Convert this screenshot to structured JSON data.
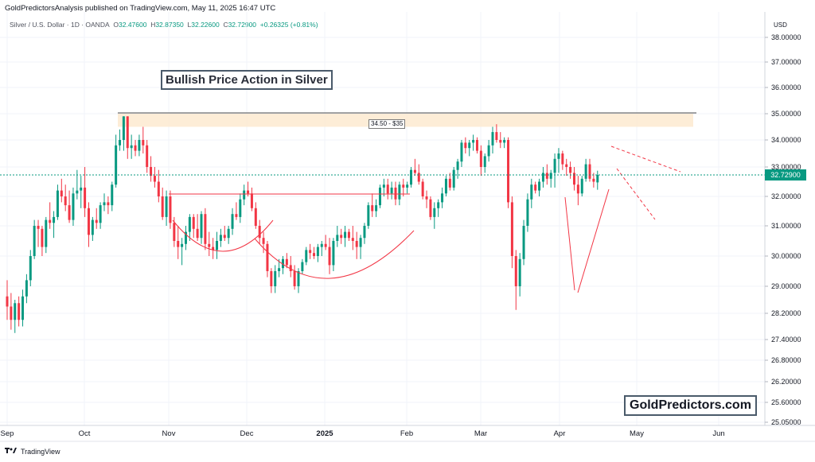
{
  "header": {
    "publish_line": "GoldPredictorsAnalysis published on TradingView.com, May 11, 2025 16:47 UTC",
    "symbol": "Silver / U.S. Dollar · 1D · OANDA",
    "ohlc": {
      "open_label": "O",
      "open": "32.47600",
      "high_label": "H",
      "high": "32.87350",
      "low_label": "L",
      "low": "32.22600",
      "close_label": "C",
      "close": "32.72900",
      "change": "+0.26325 (+0.81%)"
    }
  },
  "annotations": {
    "title": "Bullish Price Action in Silver",
    "zone_label": "34.50 - $35",
    "brand": "GoldPredictors.com"
  },
  "footer": {
    "brand": "TradingView",
    "logo": "tradingview-logo-icon"
  },
  "colors": {
    "up": "#089981",
    "down": "#f23645",
    "zone": "#fdebd3",
    "pattern_line": "#f23645",
    "last_price_tag": "#089981"
  },
  "chart_data": {
    "type": "candlestick",
    "currency_label": "USD",
    "last_price": "32.72900",
    "ylim": [
      25.0,
      38.4
    ],
    "y_ticks": [
      "38.00000",
      "37.00000",
      "36.00000",
      "35.00000",
      "34.00000",
      "33.00000",
      "32.00000",
      "31.00000",
      "30.00000",
      "29.00000",
      "28.20000",
      "27.40000",
      "26.80000",
      "26.20000",
      "25.60000",
      "25.05000"
    ],
    "x_ticks": [
      "Sep",
      "Oct",
      "Nov",
      "Dec",
      "2025",
      "Feb",
      "Mar",
      "Apr",
      "May",
      "Jun"
    ],
    "x_ticks_bold": [
      "2025"
    ],
    "resistance_zone": {
      "low": 34.5,
      "high": 35.0,
      "label": "34.50 - $35"
    },
    "candles": [
      {
        "o": 28.7,
        "h": 29.2,
        "l": 28.0,
        "c": 28.4
      },
      {
        "o": 28.4,
        "h": 28.8,
        "l": 27.7,
        "c": 28.0
      },
      {
        "o": 28.0,
        "h": 28.6,
        "l": 27.6,
        "c": 28.5
      },
      {
        "o": 28.5,
        "h": 28.7,
        "l": 27.8,
        "c": 28.0
      },
      {
        "o": 28.0,
        "h": 28.9,
        "l": 27.8,
        "c": 28.7
      },
      {
        "o": 28.7,
        "h": 29.4,
        "l": 28.5,
        "c": 29.2
      },
      {
        "o": 29.2,
        "h": 30.2,
        "l": 29.0,
        "c": 30.0
      },
      {
        "o": 30.0,
        "h": 31.2,
        "l": 29.9,
        "c": 31.0
      },
      {
        "o": 31.0,
        "h": 31.2,
        "l": 30.3,
        "c": 30.9
      },
      {
        "o": 30.9,
        "h": 31.0,
        "l": 30.0,
        "c": 30.3
      },
      {
        "o": 30.3,
        "h": 31.3,
        "l": 30.1,
        "c": 31.2
      },
      {
        "o": 31.2,
        "h": 31.8,
        "l": 30.9,
        "c": 31.1
      },
      {
        "o": 31.1,
        "h": 31.5,
        "l": 30.6,
        "c": 31.3
      },
      {
        "o": 31.3,
        "h": 32.4,
        "l": 31.2,
        "c": 32.2
      },
      {
        "o": 32.2,
        "h": 32.6,
        "l": 31.8,
        "c": 32.0
      },
      {
        "o": 32.0,
        "h": 32.4,
        "l": 31.5,
        "c": 31.7
      },
      {
        "o": 31.7,
        "h": 32.2,
        "l": 31.1,
        "c": 31.2
      },
      {
        "o": 31.2,
        "h": 32.3,
        "l": 31.0,
        "c": 32.1
      },
      {
        "o": 32.1,
        "h": 32.9,
        "l": 31.9,
        "c": 32.2
      },
      {
        "o": 32.2,
        "h": 32.7,
        "l": 31.6,
        "c": 32.3
      },
      {
        "o": 32.3,
        "h": 33.0,
        "l": 31.3,
        "c": 31.6
      },
      {
        "o": 31.6,
        "h": 31.8,
        "l": 30.3,
        "c": 30.7
      },
      {
        "o": 30.7,
        "h": 31.3,
        "l": 30.5,
        "c": 31.2
      },
      {
        "o": 31.2,
        "h": 31.6,
        "l": 30.9,
        "c": 31.1
      },
      {
        "o": 31.1,
        "h": 31.8,
        "l": 30.9,
        "c": 31.7
      },
      {
        "o": 31.7,
        "h": 32.1,
        "l": 31.5,
        "c": 31.8
      },
      {
        "o": 31.8,
        "h": 32.0,
        "l": 31.4,
        "c": 31.7
      },
      {
        "o": 31.7,
        "h": 32.5,
        "l": 31.5,
        "c": 32.4
      },
      {
        "o": 32.4,
        "h": 34.2,
        "l": 32.3,
        "c": 33.8
      },
      {
        "o": 33.8,
        "h": 34.4,
        "l": 33.6,
        "c": 34.0
      },
      {
        "o": 34.0,
        "h": 34.9,
        "l": 33.6,
        "c": 34.9
      },
      {
        "o": 34.9,
        "h": 34.9,
        "l": 33.3,
        "c": 33.7
      },
      {
        "o": 33.7,
        "h": 34.2,
        "l": 33.3,
        "c": 33.8
      },
      {
        "o": 33.8,
        "h": 34.0,
        "l": 33.4,
        "c": 33.6
      },
      {
        "o": 33.6,
        "h": 34.2,
        "l": 33.4,
        "c": 34.0
      },
      {
        "o": 34.0,
        "h": 34.5,
        "l": 33.5,
        "c": 33.8
      },
      {
        "o": 33.8,
        "h": 34.0,
        "l": 32.8,
        "c": 33.0
      },
      {
        "o": 33.0,
        "h": 33.4,
        "l": 32.5,
        "c": 32.7
      },
      {
        "o": 32.7,
        "h": 33.0,
        "l": 32.3,
        "c": 32.5
      },
      {
        "o": 32.5,
        "h": 32.9,
        "l": 31.8,
        "c": 32.0
      },
      {
        "o": 32.0,
        "h": 32.3,
        "l": 31.2,
        "c": 31.3
      },
      {
        "o": 31.3,
        "h": 32.2,
        "l": 31.0,
        "c": 32.0
      },
      {
        "o": 32.0,
        "h": 32.2,
        "l": 30.9,
        "c": 31.1
      },
      {
        "o": 31.1,
        "h": 31.3,
        "l": 30.3,
        "c": 30.5
      },
      {
        "o": 30.5,
        "h": 31.0,
        "l": 29.9,
        "c": 30.3
      },
      {
        "o": 30.3,
        "h": 30.6,
        "l": 29.7,
        "c": 30.4
      },
      {
        "o": 30.4,
        "h": 31.0,
        "l": 30.2,
        "c": 30.8
      },
      {
        "o": 30.8,
        "h": 31.4,
        "l": 30.5,
        "c": 31.3
      },
      {
        "o": 31.3,
        "h": 31.4,
        "l": 30.6,
        "c": 30.9
      },
      {
        "o": 30.9,
        "h": 31.4,
        "l": 30.5,
        "c": 30.6
      },
      {
        "o": 30.6,
        "h": 31.5,
        "l": 30.4,
        "c": 31.4
      },
      {
        "o": 31.4,
        "h": 31.6,
        "l": 30.2,
        "c": 30.4
      },
      {
        "o": 30.4,
        "h": 30.8,
        "l": 30.0,
        "c": 30.3
      },
      {
        "o": 30.3,
        "h": 30.6,
        "l": 29.9,
        "c": 30.2
      },
      {
        "o": 30.2,
        "h": 30.8,
        "l": 29.9,
        "c": 30.5
      },
      {
        "o": 30.5,
        "h": 30.9,
        "l": 30.3,
        "c": 30.7
      },
      {
        "o": 30.7,
        "h": 31.0,
        "l": 30.5,
        "c": 30.6
      },
      {
        "o": 30.6,
        "h": 31.0,
        "l": 30.4,
        "c": 30.9
      },
      {
        "o": 30.9,
        "h": 31.6,
        "l": 30.7,
        "c": 31.4
      },
      {
        "o": 31.4,
        "h": 31.8,
        "l": 31.2,
        "c": 31.3
      },
      {
        "o": 31.3,
        "h": 32.1,
        "l": 31.1,
        "c": 31.9
      },
      {
        "o": 31.9,
        "h": 32.4,
        "l": 31.7,
        "c": 32.2
      },
      {
        "o": 32.2,
        "h": 32.5,
        "l": 32.0,
        "c": 32.1
      },
      {
        "o": 32.1,
        "h": 32.3,
        "l": 31.5,
        "c": 31.6
      },
      {
        "o": 31.6,
        "h": 31.8,
        "l": 30.9,
        "c": 31.0
      },
      {
        "o": 31.0,
        "h": 31.2,
        "l": 30.4,
        "c": 30.6
      },
      {
        "o": 30.6,
        "h": 30.8,
        "l": 30.1,
        "c": 30.4
      },
      {
        "o": 30.4,
        "h": 30.5,
        "l": 29.3,
        "c": 29.5
      },
      {
        "o": 29.5,
        "h": 29.6,
        "l": 28.8,
        "c": 29.0
      },
      {
        "o": 29.0,
        "h": 29.7,
        "l": 28.8,
        "c": 29.5
      },
      {
        "o": 29.5,
        "h": 29.9,
        "l": 29.3,
        "c": 29.6
      },
      {
        "o": 29.6,
        "h": 30.0,
        "l": 29.4,
        "c": 29.9
      },
      {
        "o": 29.9,
        "h": 30.1,
        "l": 29.6,
        "c": 29.7
      },
      {
        "o": 29.7,
        "h": 30.0,
        "l": 29.3,
        "c": 29.5
      },
      {
        "o": 29.5,
        "h": 29.7,
        "l": 28.9,
        "c": 29.0
      },
      {
        "o": 29.0,
        "h": 29.6,
        "l": 28.8,
        "c": 29.5
      },
      {
        "o": 29.5,
        "h": 29.9,
        "l": 29.4,
        "c": 29.8
      },
      {
        "o": 29.8,
        "h": 30.3,
        "l": 29.7,
        "c": 30.2
      },
      {
        "o": 30.2,
        "h": 30.4,
        "l": 29.9,
        "c": 30.1
      },
      {
        "o": 30.1,
        "h": 30.3,
        "l": 29.9,
        "c": 30.0
      },
      {
        "o": 30.0,
        "h": 30.4,
        "l": 29.8,
        "c": 30.3
      },
      {
        "o": 30.3,
        "h": 30.5,
        "l": 30.0,
        "c": 30.4
      },
      {
        "o": 30.4,
        "h": 30.7,
        "l": 30.2,
        "c": 30.3
      },
      {
        "o": 30.3,
        "h": 30.6,
        "l": 29.4,
        "c": 29.7
      },
      {
        "o": 29.7,
        "h": 30.6,
        "l": 29.5,
        "c": 30.5
      },
      {
        "o": 30.5,
        "h": 31.0,
        "l": 30.3,
        "c": 30.7
      },
      {
        "o": 30.7,
        "h": 30.9,
        "l": 30.4,
        "c": 30.6
      },
      {
        "o": 30.6,
        "h": 31.0,
        "l": 30.3,
        "c": 30.8
      },
      {
        "o": 30.8,
        "h": 30.9,
        "l": 30.5,
        "c": 30.6
      },
      {
        "o": 30.6,
        "h": 31.0,
        "l": 30.2,
        "c": 30.5
      },
      {
        "o": 30.5,
        "h": 30.8,
        "l": 29.9,
        "c": 30.3
      },
      {
        "o": 30.3,
        "h": 30.7,
        "l": 29.9,
        "c": 30.6
      },
      {
        "o": 30.6,
        "h": 31.1,
        "l": 30.4,
        "c": 31.0
      },
      {
        "o": 31.0,
        "h": 31.8,
        "l": 30.9,
        "c": 31.7
      },
      {
        "o": 31.7,
        "h": 32.1,
        "l": 31.3,
        "c": 31.5
      },
      {
        "o": 31.5,
        "h": 31.9,
        "l": 31.3,
        "c": 31.7
      },
      {
        "o": 31.7,
        "h": 32.4,
        "l": 31.6,
        "c": 32.3
      },
      {
        "o": 32.3,
        "h": 32.6,
        "l": 32.0,
        "c": 32.4
      },
      {
        "o": 32.4,
        "h": 32.6,
        "l": 31.9,
        "c": 32.1
      },
      {
        "o": 32.1,
        "h": 32.5,
        "l": 31.9,
        "c": 32.3
      },
      {
        "o": 32.3,
        "h": 32.5,
        "l": 31.7,
        "c": 31.9
      },
      {
        "o": 31.9,
        "h": 32.5,
        "l": 31.7,
        "c": 32.4
      },
      {
        "o": 32.4,
        "h": 32.6,
        "l": 32.0,
        "c": 32.3
      },
      {
        "o": 32.3,
        "h": 32.5,
        "l": 32.1,
        "c": 32.4
      },
      {
        "o": 32.4,
        "h": 33.0,
        "l": 32.3,
        "c": 32.9
      },
      {
        "o": 32.9,
        "h": 33.3,
        "l": 32.7,
        "c": 32.8
      },
      {
        "o": 32.8,
        "h": 33.1,
        "l": 32.4,
        "c": 32.5
      },
      {
        "o": 32.5,
        "h": 32.6,
        "l": 31.9,
        "c": 32.0
      },
      {
        "o": 32.0,
        "h": 32.2,
        "l": 31.6,
        "c": 31.9
      },
      {
        "o": 31.9,
        "h": 32.0,
        "l": 31.2,
        "c": 31.3
      },
      {
        "o": 31.3,
        "h": 31.8,
        "l": 30.9,
        "c": 31.6
      },
      {
        "o": 31.6,
        "h": 31.9,
        "l": 31.3,
        "c": 31.8
      },
      {
        "o": 31.8,
        "h": 32.3,
        "l": 31.6,
        "c": 32.1
      },
      {
        "o": 32.1,
        "h": 32.7,
        "l": 32.0,
        "c": 32.6
      },
      {
        "o": 32.6,
        "h": 32.8,
        "l": 32.2,
        "c": 32.3
      },
      {
        "o": 32.3,
        "h": 33.0,
        "l": 32.2,
        "c": 32.9
      },
      {
        "o": 32.9,
        "h": 33.3,
        "l": 32.6,
        "c": 33.2
      },
      {
        "o": 33.2,
        "h": 34.0,
        "l": 33.0,
        "c": 33.9
      },
      {
        "o": 33.9,
        "h": 34.1,
        "l": 33.5,
        "c": 33.7
      },
      {
        "o": 33.7,
        "h": 34.0,
        "l": 33.4,
        "c": 33.9
      },
      {
        "o": 33.9,
        "h": 34.2,
        "l": 33.6,
        "c": 34.0
      },
      {
        "o": 34.0,
        "h": 34.1,
        "l": 33.5,
        "c": 33.6
      },
      {
        "o": 33.6,
        "h": 33.8,
        "l": 32.7,
        "c": 33.0
      },
      {
        "o": 33.0,
        "h": 33.5,
        "l": 32.8,
        "c": 33.4
      },
      {
        "o": 33.4,
        "h": 34.0,
        "l": 33.2,
        "c": 33.8
      },
      {
        "o": 33.8,
        "h": 34.5,
        "l": 33.5,
        "c": 34.3
      },
      {
        "o": 34.3,
        "h": 34.6,
        "l": 33.9,
        "c": 34.0
      },
      {
        "o": 34.0,
        "h": 34.3,
        "l": 33.7,
        "c": 33.9
      },
      {
        "o": 33.9,
        "h": 34.1,
        "l": 33.7,
        "c": 34.0
      },
      {
        "o": 34.0,
        "h": 34.1,
        "l": 31.6,
        "c": 31.8
      },
      {
        "o": 31.8,
        "h": 32.0,
        "l": 29.6,
        "c": 30.0
      },
      {
        "o": 30.0,
        "h": 30.2,
        "l": 28.3,
        "c": 29.0
      },
      {
        "o": 29.0,
        "h": 30.1,
        "l": 28.7,
        "c": 29.9
      },
      {
        "o": 29.9,
        "h": 31.2,
        "l": 29.7,
        "c": 31.0
      },
      {
        "o": 31.0,
        "h": 32.1,
        "l": 30.8,
        "c": 31.9
      },
      {
        "o": 31.9,
        "h": 32.6,
        "l": 31.6,
        "c": 32.4
      },
      {
        "o": 32.4,
        "h": 32.5,
        "l": 32.1,
        "c": 32.2
      },
      {
        "o": 32.2,
        "h": 32.6,
        "l": 32.0,
        "c": 32.5
      },
      {
        "o": 32.5,
        "h": 33.0,
        "l": 32.3,
        "c": 32.8
      },
      {
        "o": 32.8,
        "h": 33.1,
        "l": 32.4,
        "c": 32.6
      },
      {
        "o": 32.6,
        "h": 32.9,
        "l": 32.3,
        "c": 32.8
      },
      {
        "o": 32.8,
        "h": 33.5,
        "l": 32.3,
        "c": 33.3
      },
      {
        "o": 33.3,
        "h": 33.7,
        "l": 32.8,
        "c": 33.5
      },
      {
        "o": 33.5,
        "h": 33.6,
        "l": 32.9,
        "c": 33.1
      },
      {
        "o": 33.1,
        "h": 33.3,
        "l": 32.7,
        "c": 33.0
      },
      {
        "o": 33.0,
        "h": 33.2,
        "l": 32.6,
        "c": 32.8
      },
      {
        "o": 32.8,
        "h": 33.0,
        "l": 32.2,
        "c": 32.4
      },
      {
        "o": 32.4,
        "h": 32.7,
        "l": 31.7,
        "c": 32.1
      },
      {
        "o": 32.1,
        "h": 32.7,
        "l": 32.0,
        "c": 32.6
      },
      {
        "o": 32.6,
        "h": 33.3,
        "l": 32.5,
        "c": 33.1
      },
      {
        "o": 33.1,
        "h": 33.3,
        "l": 32.5,
        "c": 32.6
      },
      {
        "o": 32.6,
        "h": 32.8,
        "l": 32.3,
        "c": 32.5
      },
      {
        "o": 32.476,
        "h": 32.8735,
        "l": 32.226,
        "c": 32.729
      }
    ]
  }
}
